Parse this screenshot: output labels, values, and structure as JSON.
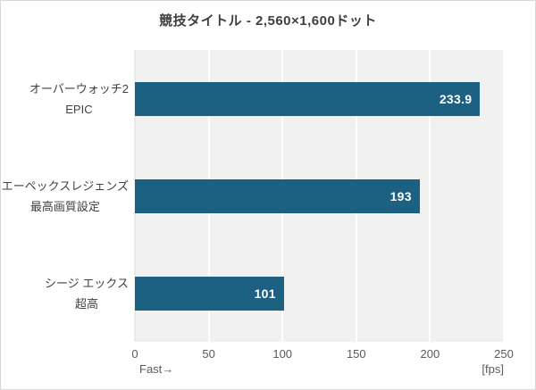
{
  "title": "競技タイトル - 2,560×1,600ドット",
  "chart_data": {
    "type": "bar",
    "orientation": "horizontal",
    "title": "競技タイトル - 2,560×1,600ドット",
    "categories": [
      [
        "オーバーウォッチ2",
        "EPIC"
      ],
      [
        "エーペックスレジェンズ",
        "最高画質設定"
      ],
      [
        "シージ エックス",
        "超高"
      ]
    ],
    "values": [
      233.9,
      193,
      101
    ],
    "value_labels": [
      "233.9",
      "193",
      "101"
    ],
    "unit": "fps",
    "xlim": [
      0,
      250
    ],
    "x_ticks": [
      0,
      50,
      100,
      150,
      200,
      250
    ],
    "x_tick_labels": [
      "0",
      "50",
      "100",
      "150",
      "200",
      "250"
    ],
    "xlabel_left": "Fast→",
    "xlabel_right": "[fps]",
    "legend": false,
    "grid": true,
    "colors": {
      "bar": "#1d6182",
      "plot_background": "#f1f1f1",
      "gridline": "#ffffff",
      "title_text": "#3f3f3f",
      "tick_text": "#595959",
      "category_text": "#404040",
      "value_text": "#ffffff",
      "frame_border": "#d9d9d9"
    }
  }
}
